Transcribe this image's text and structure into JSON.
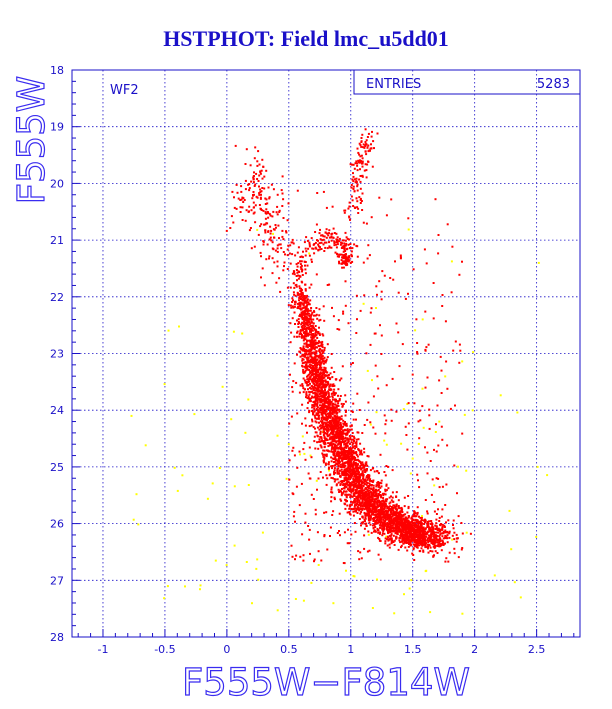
{
  "title": "HSTPHOT: Field lmc_u5dd01",
  "chart_data": {
    "type": "scatter",
    "title": "HSTPHOT: Field lmc_u5dd01",
    "xlabel": "F555W−F814W",
    "ylabel": "F555W",
    "xlim": [
      -1.25,
      2.85
    ],
    "ylim": [
      28,
      18
    ],
    "x_inverted": false,
    "y_inverted": true,
    "grid": true,
    "x_ticks": [
      "-1",
      "-0.5",
      "0",
      "0.5",
      "1",
      "1.5",
      "2",
      "2.5"
    ],
    "x_tick_values": [
      -1,
      -0.5,
      0,
      0.5,
      1,
      1.5,
      2,
      2.5
    ],
    "y_ticks": [
      "18",
      "19",
      "20",
      "21",
      "22",
      "23",
      "24",
      "25",
      "26",
      "27",
      "28"
    ],
    "y_tick_values": [
      18,
      19,
      20,
      21,
      22,
      23,
      24,
      25,
      26,
      27,
      28
    ],
    "panel_label": "WF2",
    "stats_box": {
      "label": "ENTRIES",
      "value": "5283",
      "placement": "top-right"
    },
    "series": [
      {
        "color": "#ff0000",
        "description_points": "main sequence, turnoff, subgiant and giant branch stars",
        "features": [
          {
            "kind": "main-sequence",
            "ridge": [
              [
                0.58,
                21.8
              ],
              [
                0.66,
                22.6
              ],
              [
                0.72,
                23.3
              ],
              [
                0.8,
                24.0
              ],
              [
                0.92,
                24.7
              ],
              [
                1.05,
                25.3
              ],
              [
                1.22,
                25.8
              ],
              [
                1.45,
                26.1
              ],
              [
                1.65,
                26.3
              ]
            ],
            "count": 4200
          },
          {
            "kind": "subgiant-branch",
            "ridge": [
              [
                0.58,
                21.6
              ],
              [
                0.65,
                21.2
              ],
              [
                0.78,
                20.95
              ],
              [
                0.92,
                21.05
              ],
              [
                1.0,
                21.3
              ]
            ],
            "count": 160
          },
          {
            "kind": "red-clump",
            "center": [
              0.95,
              21.35
            ],
            "count": 60
          },
          {
            "kind": "red-giant-branch",
            "ridge": [
              [
                1.0,
                20.6
              ],
              [
                1.05,
                20.0
              ],
              [
                1.1,
                19.5
              ],
              [
                1.15,
                19.2
              ]
            ],
            "count": 120
          },
          {
            "kind": "blue-loop",
            "ridge": [
              [
                0.15,
                20.3
              ],
              [
                0.25,
                20.0
              ],
              [
                0.35,
                20.8
              ],
              [
                0.5,
                21.3
              ]
            ],
            "count": 220
          },
          {
            "kind": "field-scatter",
            "xrange": [
              0.5,
              1.9
            ],
            "yrange": [
              19.5,
              26.7
            ],
            "count": 400
          }
        ]
      },
      {
        "color": "#ffff00",
        "description_points": "faint / low-quality sources",
        "features": [
          {
            "kind": "field-scatter",
            "xrange": [
              -0.8,
              2.6
            ],
            "yrange": [
              20.5,
              27.6
            ],
            "count": 120
          }
        ]
      }
    ]
  }
}
